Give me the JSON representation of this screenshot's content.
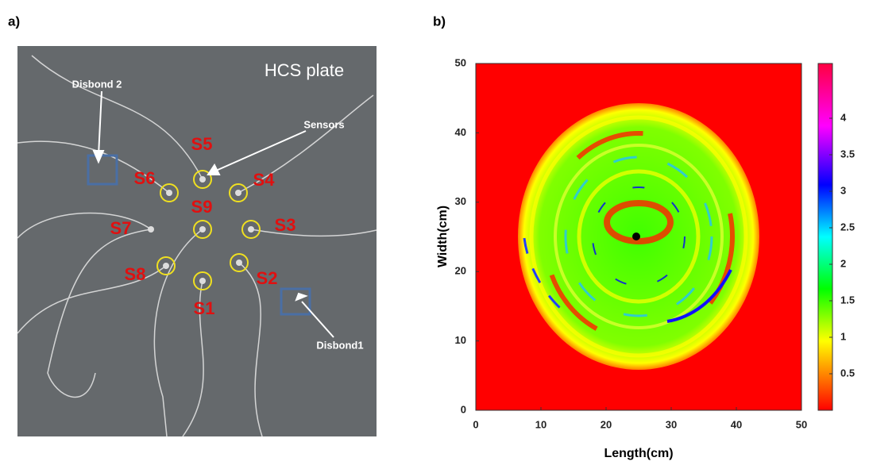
{
  "panel_a": {
    "label": "a)",
    "title": "HCS plate",
    "annotations": [
      "Disbond 2",
      "Sensors",
      "Disbond1"
    ],
    "sensors": [
      "S1",
      "S2",
      "S3",
      "S4",
      "S5",
      "S6",
      "S7",
      "S8",
      "S9"
    ]
  },
  "chart_data": {
    "type": "heatmap",
    "panel_label": "b)",
    "xlabel": "Length(cm)",
    "ylabel": "Width(cm)",
    "xlim": [
      0,
      50
    ],
    "ylim": [
      0,
      50
    ],
    "xticks": [
      0,
      10,
      20,
      30,
      40,
      50
    ],
    "yticks": [
      0,
      10,
      20,
      30,
      40,
      50
    ],
    "colorbar": {
      "clim": [
        0,
        4.75
      ],
      "ticks": [
        0.5,
        1,
        1.5,
        2,
        2.5,
        3,
        3.5,
        4
      ]
    }
  }
}
